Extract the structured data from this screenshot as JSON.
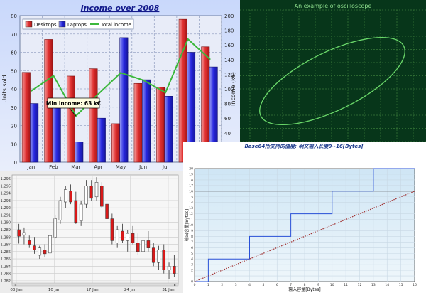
{
  "chart_data": [
    {
      "type": "bar",
      "title": "Income over 2008",
      "categories": [
        "Jan",
        "Feb",
        "Mar",
        "Apr",
        "May",
        "Jun",
        "Jul",
        "Aug",
        "Sep"
      ],
      "series": [
        {
          "name": "Desktops",
          "kind": "bar",
          "axis": "left",
          "color": "#e03030",
          "values": [
            49,
            67,
            47,
            51,
            21,
            43,
            41,
            78,
            63
          ]
        },
        {
          "name": "Laptops",
          "kind": "bar",
          "axis": "left",
          "color": "#2828e0",
          "values": [
            32,
            34,
            11,
            24,
            68,
            45,
            36,
            60,
            52
          ]
        },
        {
          "name": "Total income",
          "kind": "line",
          "axis": "right",
          "color": "#3cb83c",
          "values": [
            97,
            118,
            63,
            93,
            122,
            112,
            95,
            168,
            140
          ]
        }
      ],
      "ylabel": "Units sold",
      "y2label": "Income (k€)",
      "ylim": [
        0,
        80
      ],
      "y2lim": [
        0,
        200
      ],
      "yticks": [
        0,
        10,
        20,
        30,
        40,
        50,
        60,
        70,
        80
      ],
      "y2ticks": [
        0,
        20,
        40,
        60,
        80,
        100,
        120,
        140,
        160,
        180,
        200
      ],
      "annotation": "Min income: 63 k€",
      "legend_position": "top-left",
      "grid": true
    },
    {
      "type": "line",
      "title": "An example of oscilloscope",
      "shape": "ellipse",
      "color": "#6ad86a",
      "background": "#07361a",
      "grid": true
    },
    {
      "type": "candlestick",
      "x_labels": [
        "03 Jan",
        "10 Jan",
        "17 Jan",
        "24 Jan",
        "31 Jan"
      ],
      "yticks": [
        "1.296",
        "1.295",
        "1.294",
        "1.293",
        "1.292",
        "1.291",
        "1.290",
        "1.289",
        "1.288",
        "1.287",
        "1.286",
        "1.285",
        "1.284",
        "1.283",
        "1.282"
      ],
      "ylim": [
        1.2815,
        1.2965
      ],
      "candles": [
        {
          "o": 1.289,
          "h": 1.2898,
          "l": 1.2871,
          "c": 1.2881,
          "up": false
        },
        {
          "o": 1.2883,
          "h": 1.2893,
          "l": 1.287,
          "c": 1.2886,
          "up": true
        },
        {
          "o": 1.2875,
          "h": 1.2882,
          "l": 1.2865,
          "c": 1.287,
          "up": false
        },
        {
          "o": 1.2868,
          "h": 1.288,
          "l": 1.2857,
          "c": 1.2862,
          "up": false
        },
        {
          "o": 1.2855,
          "h": 1.2868,
          "l": 1.285,
          "c": 1.2865,
          "up": true
        },
        {
          "o": 1.2862,
          "h": 1.287,
          "l": 1.2853,
          "c": 1.2857,
          "up": false
        },
        {
          "o": 1.2858,
          "h": 1.2885,
          "l": 1.2855,
          "c": 1.2882,
          "up": true
        },
        {
          "o": 1.288,
          "h": 1.291,
          "l": 1.2878,
          "c": 1.2905,
          "up": true
        },
        {
          "o": 1.2903,
          "h": 1.2935,
          "l": 1.2898,
          "c": 1.293,
          "up": true
        },
        {
          "o": 1.2928,
          "h": 1.295,
          "l": 1.292,
          "c": 1.2945,
          "up": true
        },
        {
          "o": 1.2943,
          "h": 1.2952,
          "l": 1.2925,
          "c": 1.2928,
          "up": false
        },
        {
          "o": 1.293,
          "h": 1.2942,
          "l": 1.2898,
          "c": 1.29,
          "up": false
        },
        {
          "o": 1.2902,
          "h": 1.293,
          "l": 1.2895,
          "c": 1.2925,
          "up": true
        },
        {
          "o": 1.2925,
          "h": 1.2958,
          "l": 1.292,
          "c": 1.295,
          "up": true
        },
        {
          "o": 1.295,
          "h": 1.2958,
          "l": 1.293,
          "c": 1.2933,
          "up": false
        },
        {
          "o": 1.2935,
          "h": 1.2962,
          "l": 1.293,
          "c": 1.2955,
          "up": true
        },
        {
          "o": 1.295,
          "h": 1.2955,
          "l": 1.292,
          "c": 1.2922,
          "up": false
        },
        {
          "o": 1.2925,
          "h": 1.2935,
          "l": 1.29,
          "c": 1.2905,
          "up": false
        },
        {
          "o": 1.2905,
          "h": 1.2912,
          "l": 1.287,
          "c": 1.2875,
          "up": false
        },
        {
          "o": 1.2872,
          "h": 1.2895,
          "l": 1.2865,
          "c": 1.289,
          "up": true
        },
        {
          "o": 1.2888,
          "h": 1.2898,
          "l": 1.2872,
          "c": 1.2875,
          "up": false
        },
        {
          "o": 1.2875,
          "h": 1.289,
          "l": 1.286,
          "c": 1.2885,
          "up": true
        },
        {
          "o": 1.2885,
          "h": 1.2895,
          "l": 1.287,
          "c": 1.2872,
          "up": false
        },
        {
          "o": 1.2872,
          "h": 1.2885,
          "l": 1.2855,
          "c": 1.286,
          "up": false
        },
        {
          "o": 1.286,
          "h": 1.288,
          "l": 1.2852,
          "c": 1.2875,
          "up": true
        },
        {
          "o": 1.2875,
          "h": 1.2888,
          "l": 1.286,
          "c": 1.2865,
          "up": false
        },
        {
          "o": 1.2865,
          "h": 1.2872,
          "l": 1.284,
          "c": 1.2845,
          "up": false
        },
        {
          "o": 1.2845,
          "h": 1.2868,
          "l": 1.2835,
          "c": 1.2862,
          "up": true
        },
        {
          "o": 1.2862,
          "h": 1.287,
          "l": 1.283,
          "c": 1.2835,
          "up": false
        },
        {
          "o": 1.2835,
          "h": 1.2845,
          "l": 1.2822,
          "c": 1.284,
          "up": true
        },
        {
          "o": 1.284,
          "h": 1.2855,
          "l": 1.2825,
          "c": 1.283,
          "up": false
        }
      ]
    },
    {
      "type": "line",
      "title": "Base64所支持的值度: 明文输入长度0~16[Bytes]",
      "xlabel": "输入容量[Bytes]",
      "ylabel": "输出容量[Bytes]",
      "xlim": [
        0,
        16
      ],
      "ylim": [
        0,
        20
      ],
      "xticks": [
        0,
        1,
        2,
        3,
        4,
        5,
        6,
        7,
        8,
        9,
        10,
        11,
        12,
        13,
        14,
        15,
        16
      ],
      "yticks": [
        0,
        1,
        2,
        3,
        4,
        5,
        6,
        7,
        8,
        9,
        10,
        11,
        12,
        13,
        14,
        15,
        16,
        17,
        18,
        19,
        20
      ],
      "series": [
        {
          "kind": "step",
          "color": "#2850d8",
          "x": [
            0,
            1,
            1,
            4,
            4,
            7,
            7,
            10,
            10,
            13,
            13,
            16
          ],
          "y": [
            0,
            0,
            4,
            4,
            8,
            8,
            12,
            12,
            16,
            16,
            20,
            20
          ]
        },
        {
          "kind": "dotted-line",
          "color": "#a03030",
          "x": [
            0,
            16
          ],
          "y": [
            0,
            16
          ]
        }
      ],
      "hline": 16,
      "grid": true
    }
  ]
}
